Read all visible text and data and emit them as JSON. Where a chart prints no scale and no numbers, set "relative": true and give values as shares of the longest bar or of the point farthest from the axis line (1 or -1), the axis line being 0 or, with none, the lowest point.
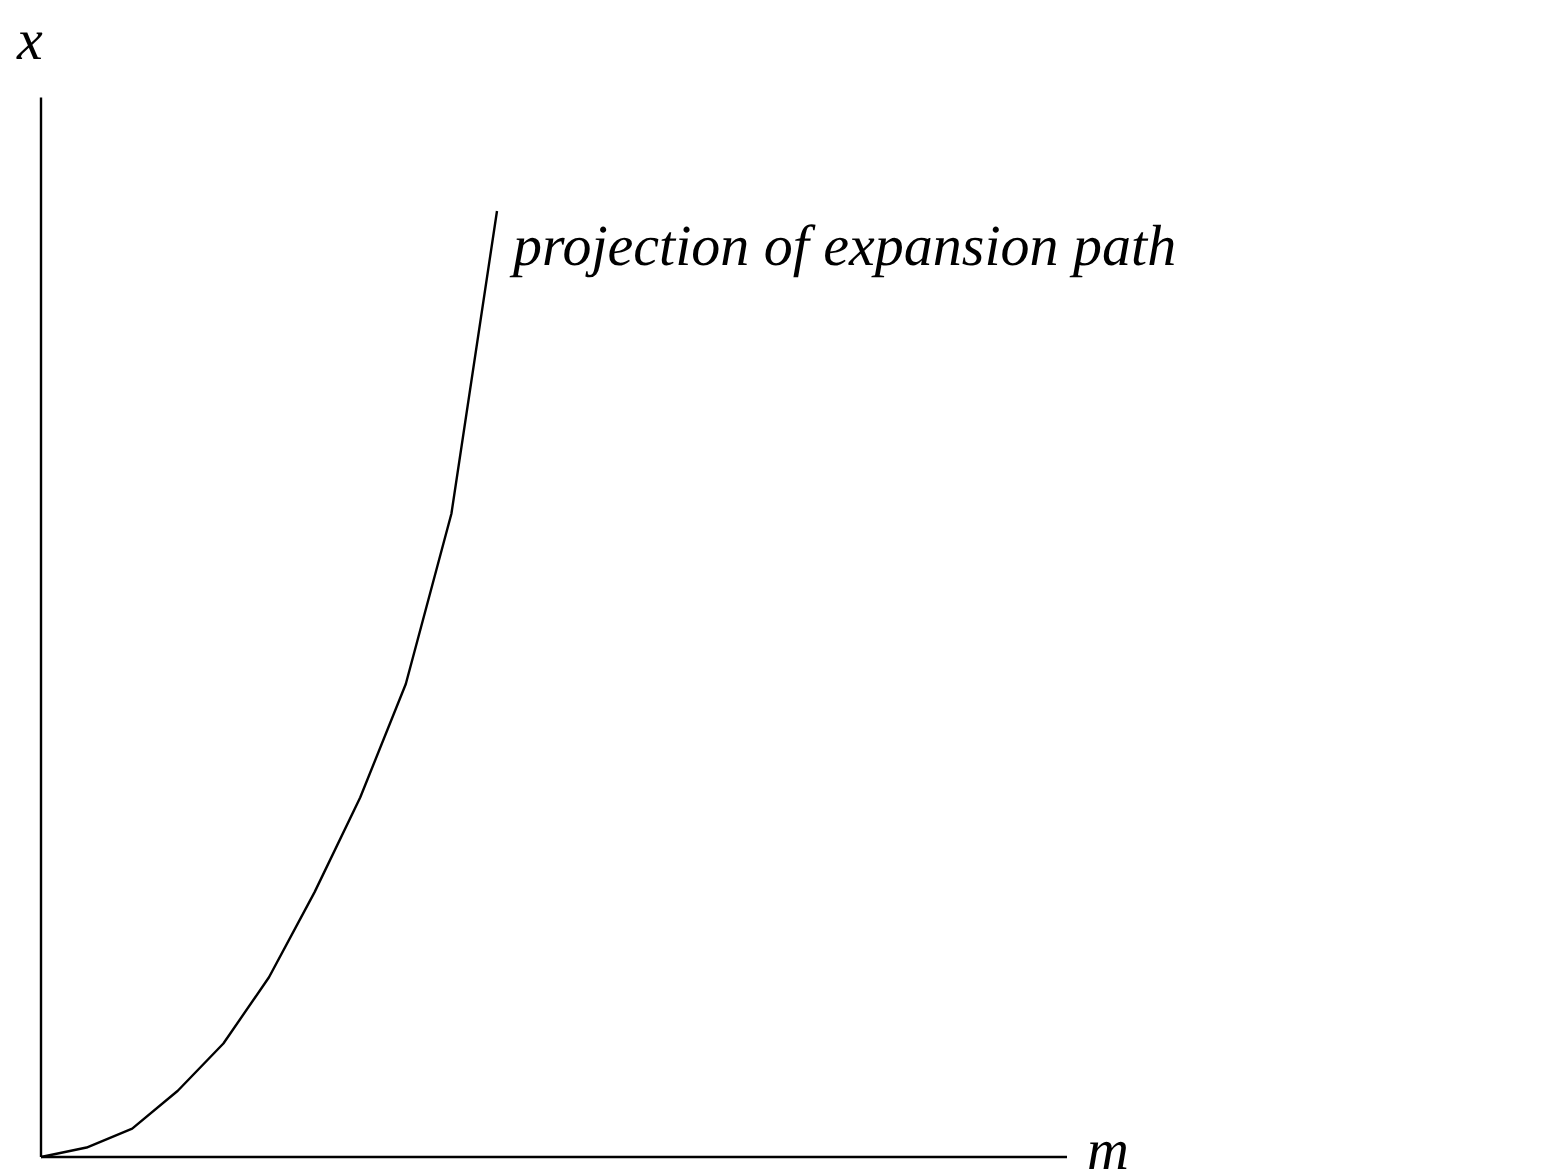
{
  "chart_data": {
    "type": "line",
    "relative": true,
    "xlabel": "m",
    "ylabel": "x",
    "categories": [
      null,
      null,
      null,
      null,
      null,
      null,
      null,
      null,
      null,
      null,
      null,
      null,
      null,
      null,
      null,
      null,
      null,
      null,
      null,
      null,
      null,
      null,
      null
    ],
    "series": [
      {
        "color": "#000000",
        "values": [
          0,
          0.01,
          0.03,
          0.07,
          0.12,
          0.19,
          0.28,
          0.38,
          0.5,
          0.68,
          1.0,
          null,
          null,
          null,
          null,
          null,
          null,
          null,
          null,
          null,
          null,
          null,
          null
        ]
      }
    ],
    "annotations": [
      "projection of expansion path"
    ],
    "marker": "none",
    "line_style": "solid"
  }
}
